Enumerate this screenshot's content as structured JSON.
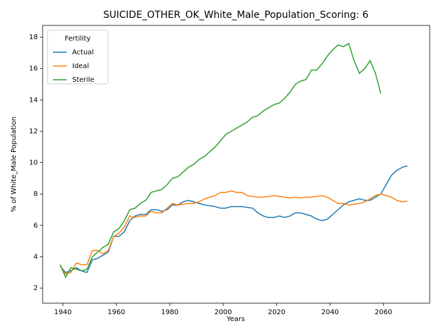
{
  "chart_data": {
    "type": "line",
    "title": "SUICIDE_OTHER_OK_White_Male_Population_Scoring: 6",
    "xlabel": "Years",
    "ylabel": "% of White_Male Population",
    "legend_title": "Fertility",
    "legend": "upper left",
    "x": [
      1939,
      1941,
      1943,
      1945,
      1947,
      1949,
      1951,
      1953,
      1955,
      1957,
      1959,
      1961,
      1963,
      1965,
      1967,
      1969,
      1971,
      1973,
      1975,
      1977,
      1979,
      1981,
      1983,
      1985,
      1987,
      1989,
      1991,
      1993,
      1995,
      1997,
      1999,
      2001,
      2003,
      2005,
      2007,
      2009,
      2011,
      2013,
      2015,
      2017,
      2019,
      2021,
      2023,
      2025,
      2027,
      2029,
      2031,
      2033,
      2035,
      2037,
      2039,
      2041,
      2043,
      2045,
      2047,
      2049,
      2051,
      2053,
      2055,
      2057,
      2059,
      2061,
      2063,
      2065,
      2067,
      2069
    ],
    "series": [
      {
        "name": "Actual",
        "color": "#1f77b4",
        "values": [
          3.4,
          3.0,
          3.1,
          3.3,
          3.1,
          3.0,
          3.8,
          3.9,
          4.1,
          4.3,
          5.3,
          5.3,
          5.6,
          6.3,
          6.6,
          6.7,
          6.7,
          7.0,
          7.0,
          6.9,
          7.0,
          7.3,
          7.3,
          7.5,
          7.6,
          7.5,
          7.4,
          7.3,
          7.25,
          7.2,
          7.1,
          7.1,
          7.2,
          7.2,
          7.2,
          7.15,
          7.1,
          6.8,
          6.6,
          6.5,
          6.5,
          6.6,
          6.5,
          6.6,
          6.8,
          6.8,
          6.7,
          6.6,
          6.4,
          6.3,
          6.4,
          6.7,
          7.0,
          7.3,
          7.5,
          7.6,
          7.7,
          7.6,
          7.6,
          7.8,
          8.0,
          8.6,
          9.2,
          9.5,
          9.7,
          9.8
        ]
      },
      {
        "name": "Ideal",
        "color": "#ff7f0e",
        "values": [
          3.4,
          2.9,
          3.0,
          3.6,
          3.5,
          3.5,
          4.4,
          4.4,
          4.2,
          4.4,
          5.3,
          5.5,
          5.9,
          6.6,
          6.5,
          6.6,
          6.6,
          6.9,
          6.8,
          6.8,
          7.1,
          7.4,
          7.3,
          7.35,
          7.4,
          7.4,
          7.5,
          7.7,
          7.8,
          7.9,
          8.1,
          8.1,
          8.2,
          8.1,
          8.1,
          7.9,
          7.85,
          7.8,
          7.8,
          7.85,
          7.9,
          7.85,
          7.8,
          7.75,
          7.8,
          7.75,
          7.8,
          7.8,
          7.85,
          7.9,
          7.8,
          7.6,
          7.4,
          7.4,
          7.3,
          7.35,
          7.4,
          7.5,
          7.7,
          7.9,
          8.0,
          7.9,
          7.8,
          7.6,
          7.5,
          7.55
        ]
      },
      {
        "name": "Sterile",
        "color": "#2ca02c",
        "values": [
          3.5,
          2.7,
          3.3,
          3.2,
          3.1,
          3.2,
          4.0,
          4.3,
          4.6,
          4.8,
          5.6,
          5.8,
          6.3,
          7.0,
          7.1,
          7.4,
          7.6,
          8.1,
          8.2,
          8.3,
          8.6,
          9.0,
          9.1,
          9.4,
          9.7,
          9.9,
          10.2,
          10.4,
          10.7,
          11.0,
          11.4,
          11.8,
          12.0,
          12.2,
          12.4,
          12.6,
          12.9,
          13.0,
          13.3,
          13.5,
          13.7,
          13.8,
          14.1,
          14.5,
          15.0,
          15.2,
          15.3,
          15.9,
          15.9,
          16.3,
          16.8,
          17.2,
          17.5,
          17.4,
          17.6,
          16.5,
          15.7,
          16.0,
          16.5,
          15.7,
          14.4,
          null,
          null,
          null,
          null,
          null
        ]
      }
    ],
    "xlim": [
      1932.4,
      2077.3
    ],
    "xticks": [
      1940,
      1960,
      1980,
      2000,
      2020,
      2040,
      2060
    ],
    "ylim": [
      1.04,
      18.75
    ],
    "yticks": [
      2,
      4,
      6,
      8,
      10,
      12,
      14,
      16,
      18
    ]
  }
}
